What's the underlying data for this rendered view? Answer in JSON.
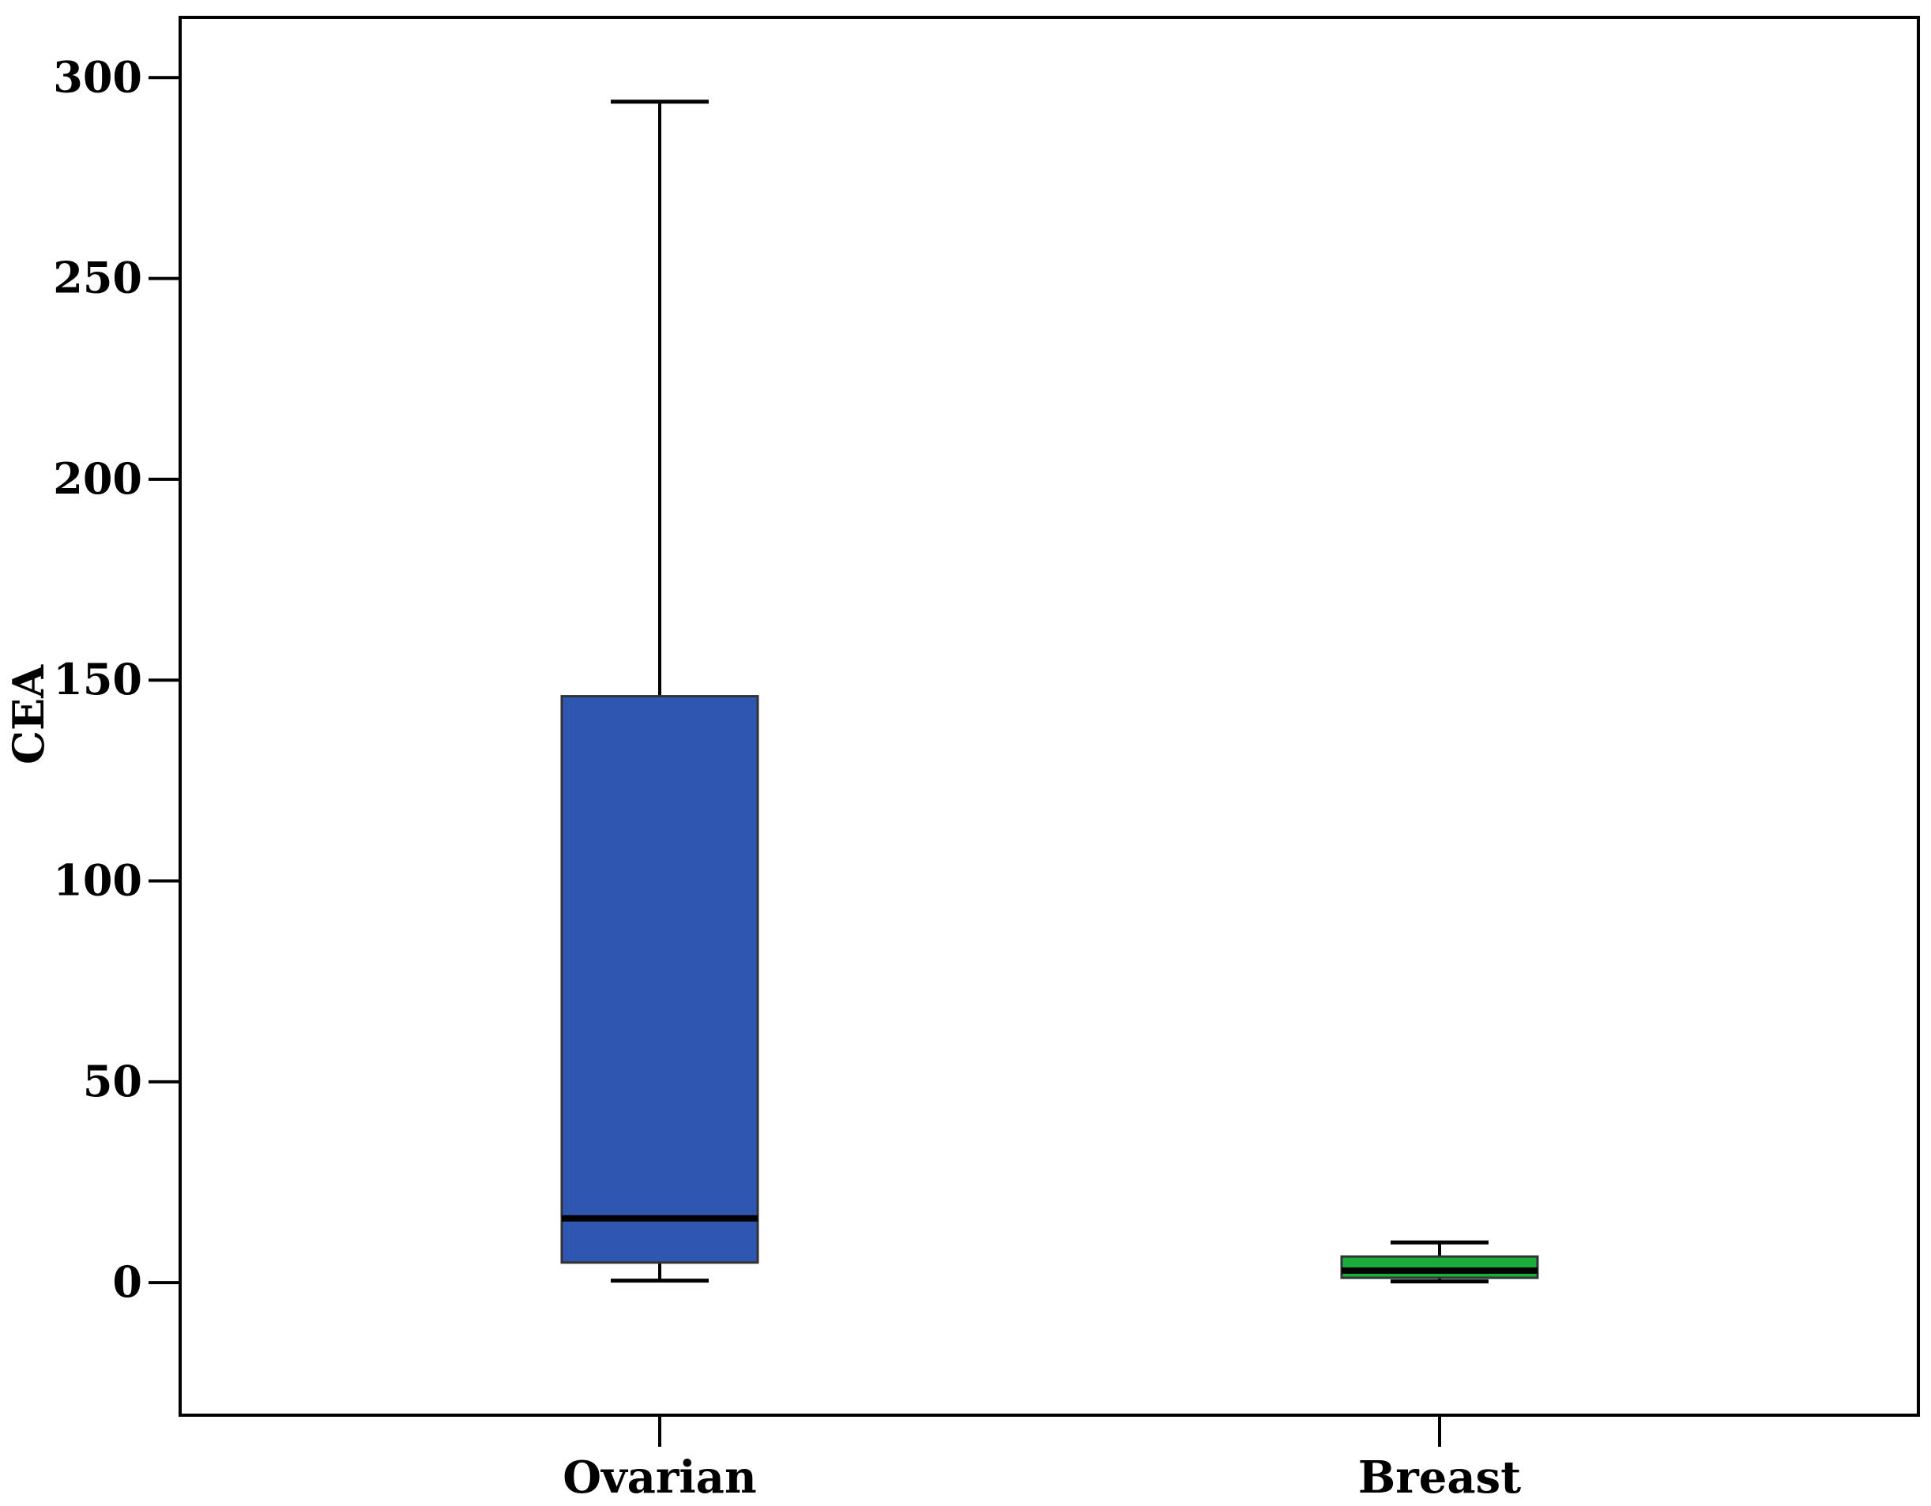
{
  "chart_data": {
    "type": "boxplot",
    "ylabel": "CEA",
    "ylim": [
      -33,
      315
    ],
    "yticks": [
      0,
      50,
      100,
      150,
      200,
      250,
      300
    ],
    "grid": false,
    "categories": [
      "Ovarian",
      "Breast"
    ],
    "boxes": [
      {
        "name": "Ovarian",
        "whisker_low": 0.5,
        "q1": 5,
        "median": 16,
        "q3": 146,
        "whisker_high": 294,
        "color": "#2f56b0"
      },
      {
        "name": "Breast",
        "whisker_low": 0.3,
        "q1": 1.2,
        "median": 3,
        "q3": 6.5,
        "whisker_high": 10,
        "color": "#1aad3a"
      }
    ]
  }
}
